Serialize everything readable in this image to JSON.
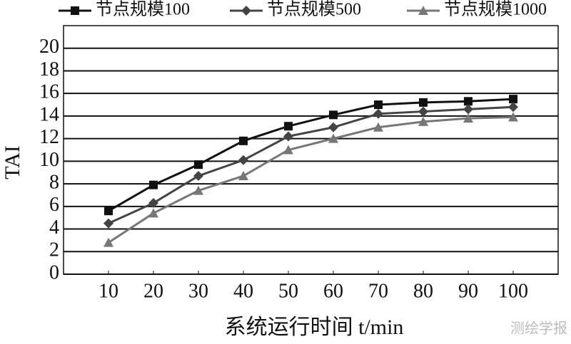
{
  "chart_data": {
    "type": "line",
    "x_label": "系统运行时间 t/min",
    "y_label": "TAI",
    "x": [
      10,
      20,
      30,
      40,
      50,
      60,
      70,
      80,
      90,
      100
    ],
    "xlim": [
      0,
      110
    ],
    "xticks": [
      10,
      20,
      30,
      40,
      50,
      60,
      70,
      80,
      90,
      100
    ],
    "ylim": [
      0,
      22
    ],
    "yticks": [
      0,
      2,
      4,
      6,
      8,
      10,
      12,
      14,
      16,
      18,
      20
    ],
    "grid": true,
    "legend": "top",
    "series": [
      {
        "name": "节点规模100",
        "color": "#111111",
        "marker": "square",
        "values": [
          5.6,
          7.9,
          9.7,
          11.8,
          13.1,
          14.1,
          15.0,
          15.2,
          15.3,
          15.5
        ]
      },
      {
        "name": "节点规模500",
        "color": "#444444",
        "marker": "diamond",
        "values": [
          4.5,
          6.3,
          8.7,
          10.1,
          12.2,
          13.0,
          14.2,
          14.4,
          14.6,
          14.8
        ]
      },
      {
        "name": "节点规模1000",
        "color": "#777777",
        "marker": "triangle",
        "values": [
          2.8,
          5.4,
          7.4,
          8.7,
          11.0,
          12.0,
          13.0,
          13.5,
          13.8,
          13.9
        ]
      }
    ],
    "watermark": "测绘学报"
  }
}
